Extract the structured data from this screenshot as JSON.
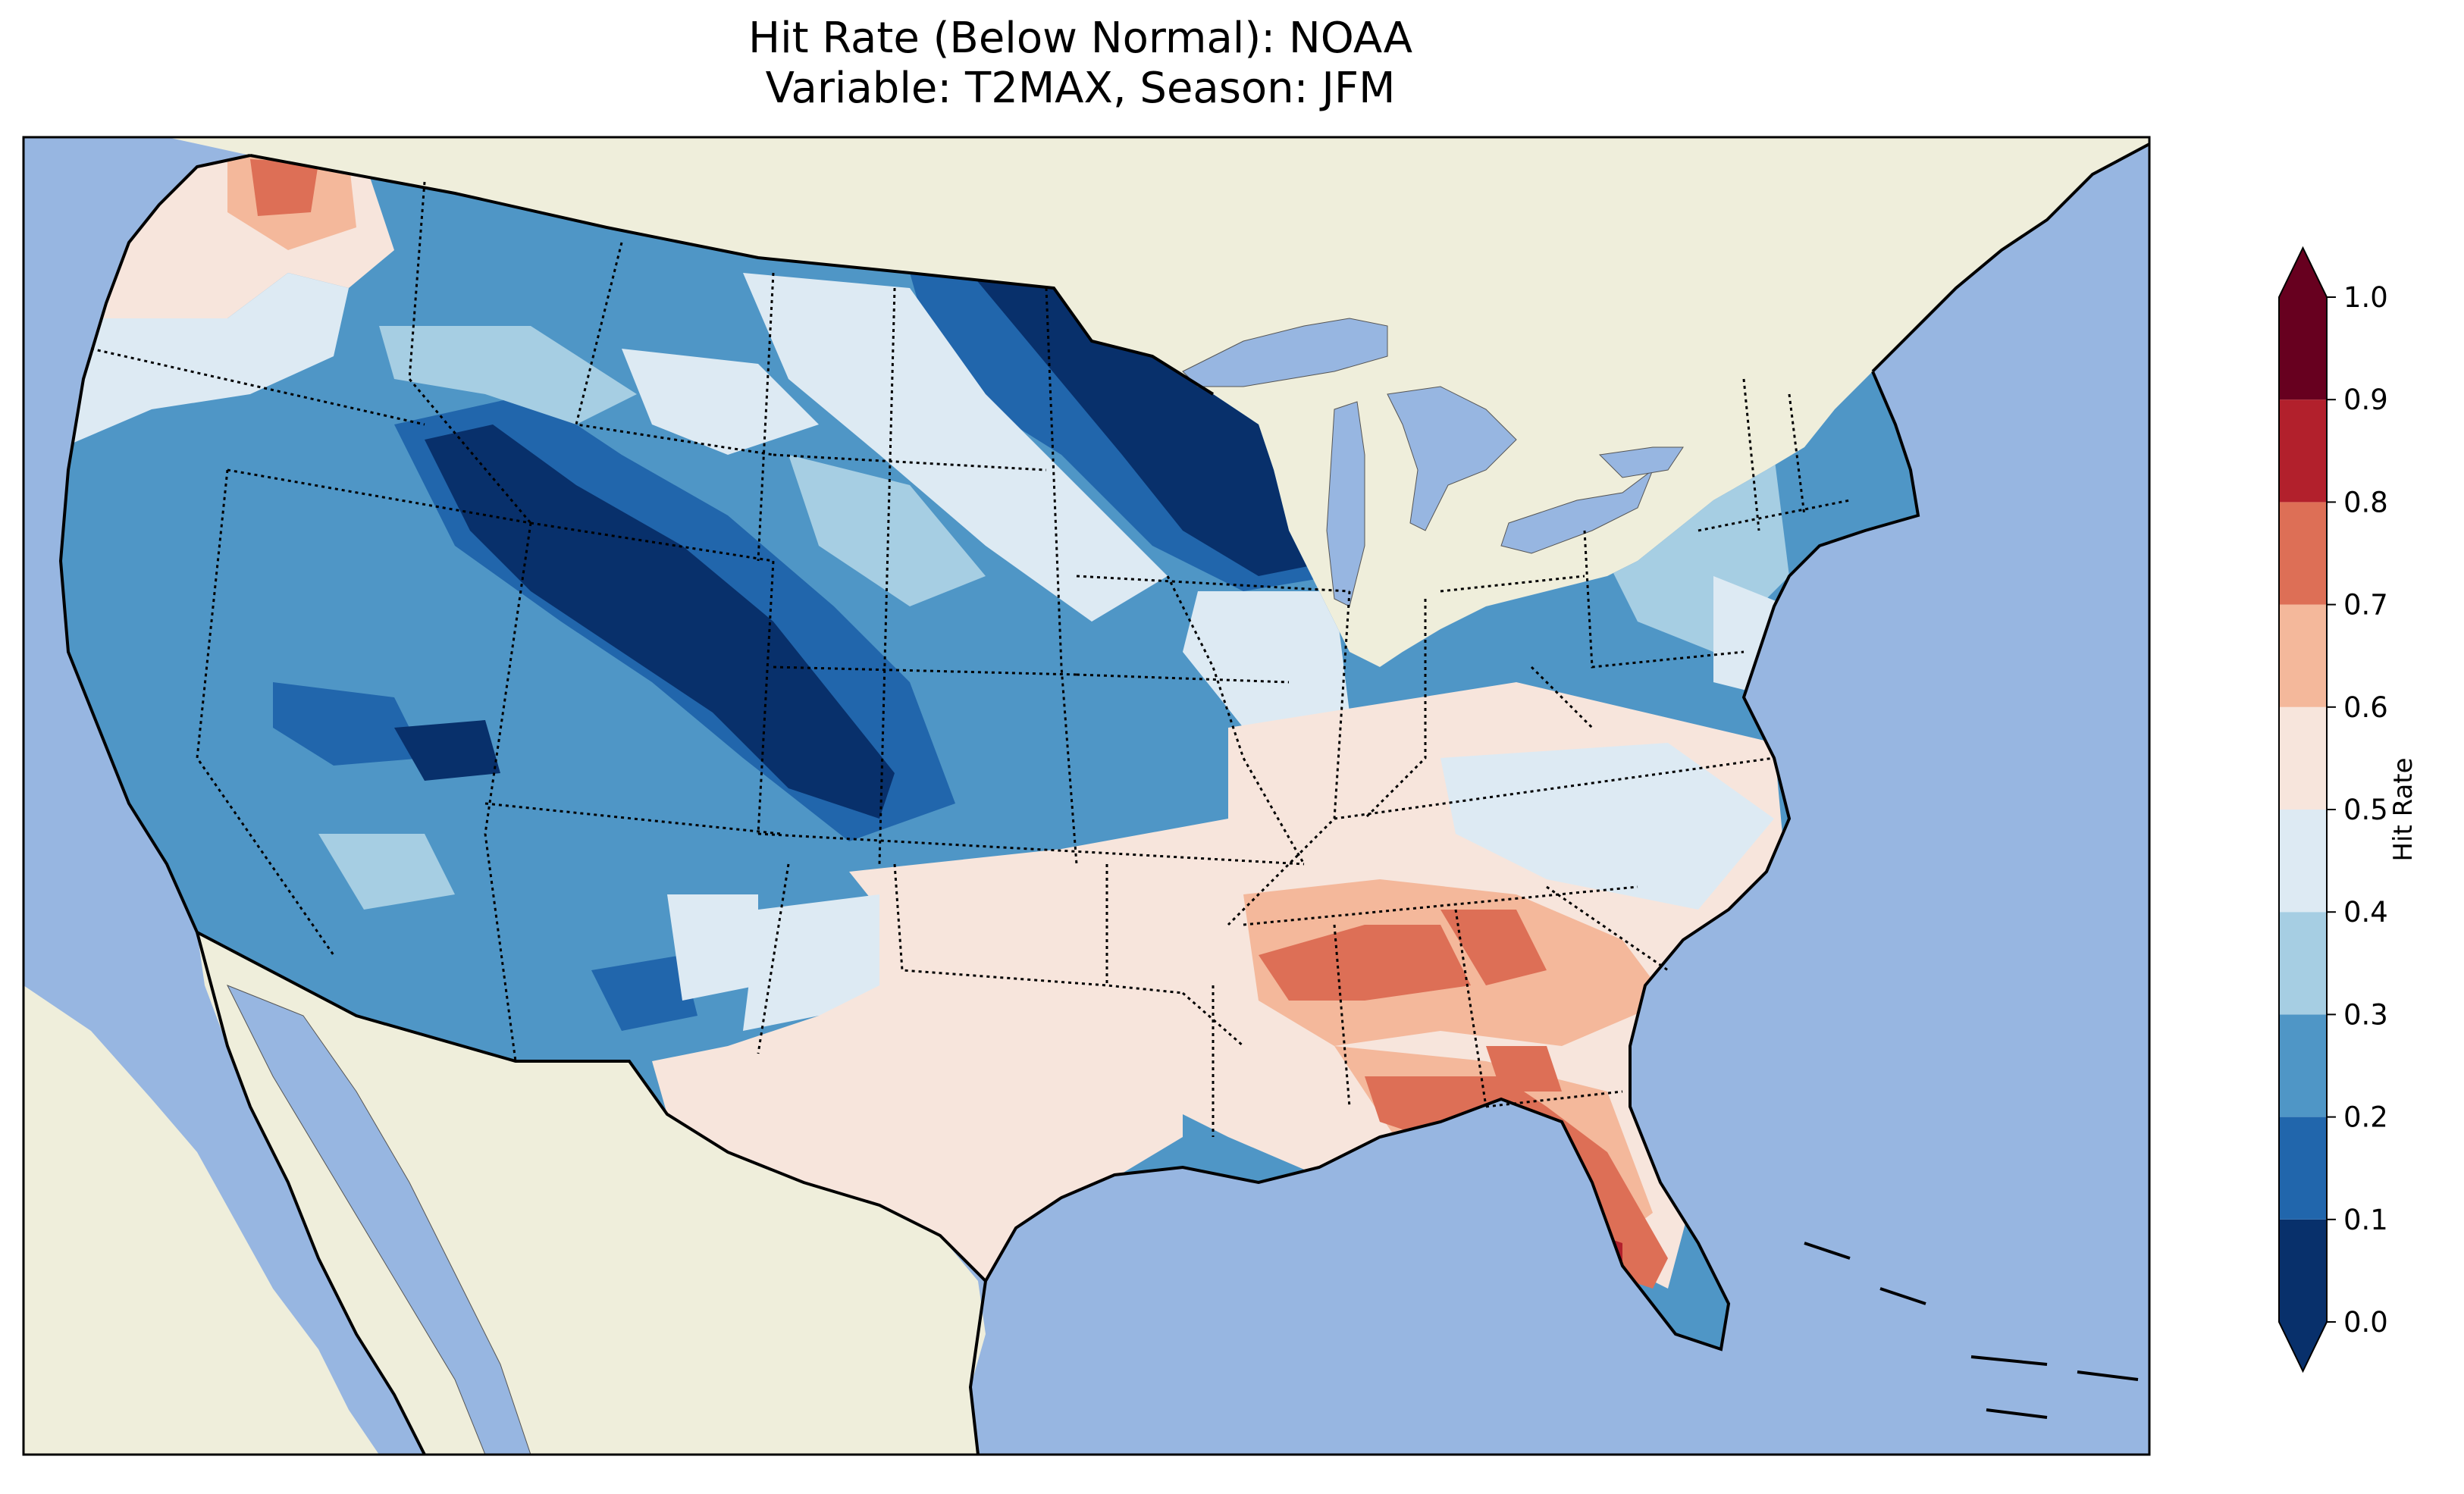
{
  "title": {
    "line1": "Hit Rate (Below Normal): NOAA",
    "line2": "Variable: T2MAX, Season: JFM"
  },
  "colorbar": {
    "label": "Hit Rate",
    "ticks": [
      "0.0",
      "0.1",
      "0.2",
      "0.3",
      "0.4",
      "0.5",
      "0.6",
      "0.7",
      "0.8",
      "0.9",
      "1.0"
    ],
    "levels": [
      {
        "range": "0.0-0.1",
        "color": "#08306b"
      },
      {
        "range": "0.1-0.2",
        "color": "#2166ac"
      },
      {
        "range": "0.2-0.3",
        "color": "#4f96c6"
      },
      {
        "range": "0.3-0.4",
        "color": "#a6cee3"
      },
      {
        "range": "0.4-0.5",
        "color": "#ddeaf3"
      },
      {
        "range": "0.5-0.6",
        "color": "#f7e5dc"
      },
      {
        "range": "0.6-0.7",
        "color": "#f4b89b"
      },
      {
        "range": "0.7-0.8",
        "color": "#dd6f56"
      },
      {
        "range": "0.8-0.9",
        "color": "#b2202c"
      },
      {
        "range": "0.9-1.0",
        "color": "#67001f"
      }
    ],
    "under_color": "#08306b",
    "over_color": "#67001f"
  },
  "map": {
    "ocean_color": "#97b6e1",
    "land_color": "#efeedb",
    "region": "Contiguous United States"
  },
  "chart_data": {
    "type": "heatmap",
    "title": "Hit Rate (Below Normal): NOAA\nVariable: T2MAX, Season: JFM",
    "variable": "T2MAX",
    "season": "JFM",
    "colorbar_label": "Hit Rate",
    "vmin": 0.0,
    "vmax": 1.0,
    "interval": 0.1
  }
}
